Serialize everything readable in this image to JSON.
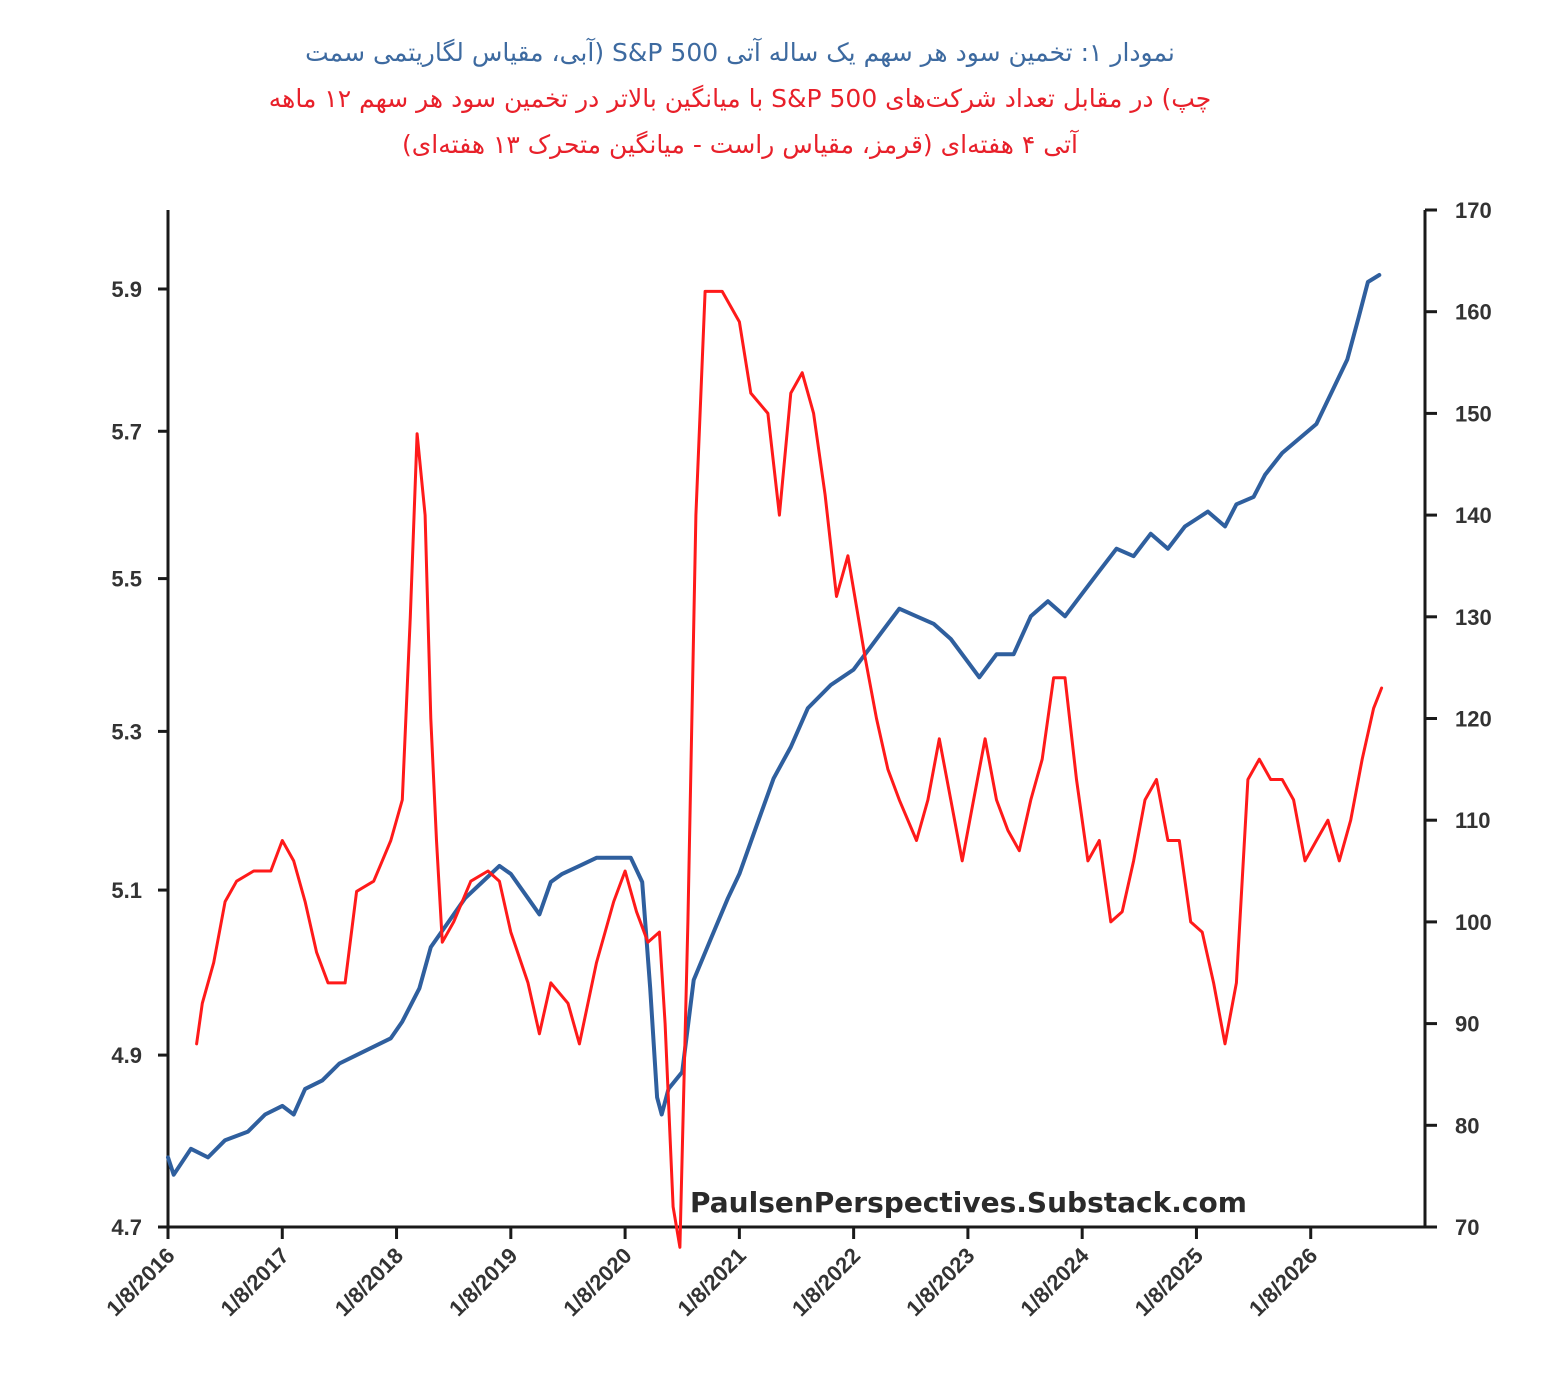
{
  "title": {
    "line1_blue": "نمودار ۱: تخمین سود هر سهم یک ساله آتی S&P 500 (آبی، مقیاس لگاریتمی سمت",
    "line2_red": "چپ) در مقابل تعداد شرکت‌های S&P 500 با میانگین بالاتر در تخمین سود هر سهم ۱۲ ماهه",
    "line3_red": "آتی ۴ هفته‌ای (قرمز، مقیاس راست - میانگین متحرک ۱۳ هفته‌ای)"
  },
  "watermark": "PaulsenPerspectives.Substack.com",
  "colors": {
    "blue": "#2f5f9e",
    "red": "#ff1a1a",
    "axis": "#1a1a1a"
  },
  "chart_data": {
    "type": "line",
    "x_ticks": [
      "1/8/2016",
      "1/8/2017",
      "1/8/2018",
      "1/8/2019",
      "1/8/2020",
      "1/8/2021",
      "1/8/2022",
      "1/8/2023",
      "1/8/2024",
      "1/8/2025",
      "1/8/2026"
    ],
    "y_left": {
      "ticks": [
        "4.7",
        "4.9",
        "5.1",
        "5.3",
        "5.5",
        "5.7",
        "5.9"
      ],
      "range": [
        4.7,
        6.0
      ],
      "scale": "log"
    },
    "y_right": {
      "ticks": [
        "70",
        "80",
        "90",
        "100",
        "110",
        "120",
        "130",
        "140",
        "150",
        "160",
        "170"
      ],
      "range": [
        70,
        170
      ]
    },
    "series": [
      {
        "axis": "left",
        "points": [
          [
            2016.0,
            4.78
          ],
          [
            2016.05,
            4.76
          ],
          [
            2016.2,
            4.79
          ],
          [
            2016.35,
            4.78
          ],
          [
            2016.5,
            4.8
          ],
          [
            2016.7,
            4.81
          ],
          [
            2016.85,
            4.83
          ],
          [
            2017.0,
            4.84
          ],
          [
            2017.1,
            4.83
          ],
          [
            2017.2,
            4.86
          ],
          [
            2017.35,
            4.87
          ],
          [
            2017.5,
            4.89
          ],
          [
            2017.65,
            4.9
          ],
          [
            2017.8,
            4.91
          ],
          [
            2017.95,
            4.92
          ],
          [
            2018.05,
            4.94
          ],
          [
            2018.2,
            4.98
          ],
          [
            2018.3,
            5.03
          ],
          [
            2018.45,
            5.06
          ],
          [
            2018.6,
            5.09
          ],
          [
            2018.75,
            5.11
          ],
          [
            2018.9,
            5.13
          ],
          [
            2019.0,
            5.12
          ],
          [
            2019.15,
            5.09
          ],
          [
            2019.25,
            5.07
          ],
          [
            2019.35,
            5.11
          ],
          [
            2019.45,
            5.12
          ],
          [
            2019.6,
            5.13
          ],
          [
            2019.75,
            5.14
          ],
          [
            2019.9,
            5.14
          ],
          [
            2020.05,
            5.14
          ],
          [
            2020.15,
            5.11
          ],
          [
            2020.22,
            4.98
          ],
          [
            2020.28,
            4.85
          ],
          [
            2020.32,
            4.83
          ],
          [
            2020.38,
            4.86
          ],
          [
            2020.5,
            4.88
          ],
          [
            2020.6,
            4.99
          ],
          [
            2020.75,
            5.04
          ],
          [
            2020.9,
            5.09
          ],
          [
            2021.0,
            5.12
          ],
          [
            2021.15,
            5.18
          ],
          [
            2021.3,
            5.24
          ],
          [
            2021.45,
            5.28
          ],
          [
            2021.6,
            5.33
          ],
          [
            2021.8,
            5.36
          ],
          [
            2022.0,
            5.38
          ],
          [
            2022.15,
            5.41
          ],
          [
            2022.3,
            5.44
          ],
          [
            2022.4,
            5.46
          ],
          [
            2022.55,
            5.45
          ],
          [
            2022.7,
            5.44
          ],
          [
            2022.85,
            5.42
          ],
          [
            2023.0,
            5.39
          ],
          [
            2023.1,
            5.37
          ],
          [
            2023.25,
            5.4
          ],
          [
            2023.4,
            5.4
          ],
          [
            2023.55,
            5.45
          ],
          [
            2023.7,
            5.47
          ],
          [
            2023.85,
            5.45
          ],
          [
            2024.0,
            5.48
          ],
          [
            2024.15,
            5.51
          ],
          [
            2024.3,
            5.54
          ],
          [
            2024.45,
            5.53
          ],
          [
            2024.6,
            5.56
          ],
          [
            2024.75,
            5.54
          ],
          [
            2024.9,
            5.57
          ],
          [
            2025.0,
            5.58
          ],
          [
            2025.1,
            5.59
          ],
          [
            2025.25,
            5.57
          ],
          [
            2025.35,
            5.6
          ],
          [
            2025.5,
            5.61
          ],
          [
            2025.6,
            5.64
          ],
          [
            2025.75,
            5.67
          ],
          [
            2025.9,
            5.69
          ],
          [
            2026.05,
            5.71
          ],
          [
            2026.2,
            5.76
          ],
          [
            2026.32,
            5.8
          ],
          [
            2026.42,
            5.86
          ],
          [
            2026.5,
            5.91
          ],
          [
            2026.6,
            5.92
          ]
        ]
      },
      {
        "axis": "right",
        "points": [
          [
            2016.25,
            88
          ],
          [
            2016.3,
            92
          ],
          [
            2016.4,
            96
          ],
          [
            2016.5,
            102
          ],
          [
            2016.6,
            104
          ],
          [
            2016.75,
            105
          ],
          [
            2016.9,
            105
          ],
          [
            2017.0,
            108
          ],
          [
            2017.1,
            106
          ],
          [
            2017.2,
            102
          ],
          [
            2017.3,
            97
          ],
          [
            2017.4,
            94
          ],
          [
            2017.55,
            94
          ],
          [
            2017.65,
            103
          ],
          [
            2017.8,
            104
          ],
          [
            2017.95,
            108
          ],
          [
            2018.05,
            112
          ],
          [
            2018.12,
            130
          ],
          [
            2018.18,
            148
          ],
          [
            2018.25,
            140
          ],
          [
            2018.3,
            120
          ],
          [
            2018.35,
            108
          ],
          [
            2018.4,
            98
          ],
          [
            2018.5,
            100
          ],
          [
            2018.65,
            104
          ],
          [
            2018.8,
            105
          ],
          [
            2018.9,
            104
          ],
          [
            2019.0,
            99
          ],
          [
            2019.15,
            94
          ],
          [
            2019.25,
            89
          ],
          [
            2019.35,
            94
          ],
          [
            2019.5,
            92
          ],
          [
            2019.6,
            88
          ],
          [
            2019.75,
            96
          ],
          [
            2019.9,
            102
          ],
          [
            2020.0,
            105
          ],
          [
            2020.1,
            101
          ],
          [
            2020.2,
            98
          ],
          [
            2020.3,
            99
          ],
          [
            2020.35,
            90
          ],
          [
            2020.42,
            72
          ],
          [
            2020.48,
            68
          ],
          [
            2020.55,
            100
          ],
          [
            2020.62,
            140
          ],
          [
            2020.7,
            162
          ],
          [
            2020.85,
            162
          ],
          [
            2021.0,
            159
          ],
          [
            2021.1,
            152
          ],
          [
            2021.25,
            150
          ],
          [
            2021.35,
            140
          ],
          [
            2021.45,
            152
          ],
          [
            2021.55,
            154
          ],
          [
            2021.65,
            150
          ],
          [
            2021.75,
            142
          ],
          [
            2021.85,
            132
          ],
          [
            2021.95,
            136
          ],
          [
            2022.1,
            126
          ],
          [
            2022.2,
            120
          ],
          [
            2022.3,
            115
          ],
          [
            2022.4,
            112
          ],
          [
            2022.55,
            108
          ],
          [
            2022.65,
            112
          ],
          [
            2022.75,
            118
          ],
          [
            2022.85,
            112
          ],
          [
            2022.95,
            106
          ],
          [
            2023.05,
            112
          ],
          [
            2023.15,
            118
          ],
          [
            2023.25,
            112
          ],
          [
            2023.35,
            109
          ],
          [
            2023.45,
            107
          ],
          [
            2023.55,
            112
          ],
          [
            2023.65,
            116
          ],
          [
            2023.75,
            124
          ],
          [
            2023.85,
            124
          ],
          [
            2023.95,
            114
          ],
          [
            2024.05,
            106
          ],
          [
            2024.15,
            108
          ],
          [
            2024.25,
            100
          ],
          [
            2024.35,
            101
          ],
          [
            2024.45,
            106
          ],
          [
            2024.55,
            112
          ],
          [
            2024.65,
            114
          ],
          [
            2024.75,
            108
          ],
          [
            2024.85,
            108
          ],
          [
            2024.95,
            100
          ],
          [
            2025.05,
            99
          ],
          [
            2025.15,
            94
          ],
          [
            2025.25,
            88
          ],
          [
            2025.35,
            94
          ],
          [
            2025.45,
            114
          ],
          [
            2025.55,
            116
          ],
          [
            2025.65,
            114
          ],
          [
            2025.75,
            114
          ],
          [
            2025.85,
            112
          ],
          [
            2025.95,
            106
          ],
          [
            2026.05,
            108
          ],
          [
            2026.15,
            110
          ],
          [
            2026.25,
            106
          ],
          [
            2026.35,
            110
          ],
          [
            2026.45,
            116
          ],
          [
            2026.55,
            121
          ],
          [
            2026.62,
            123
          ]
        ]
      }
    ]
  }
}
